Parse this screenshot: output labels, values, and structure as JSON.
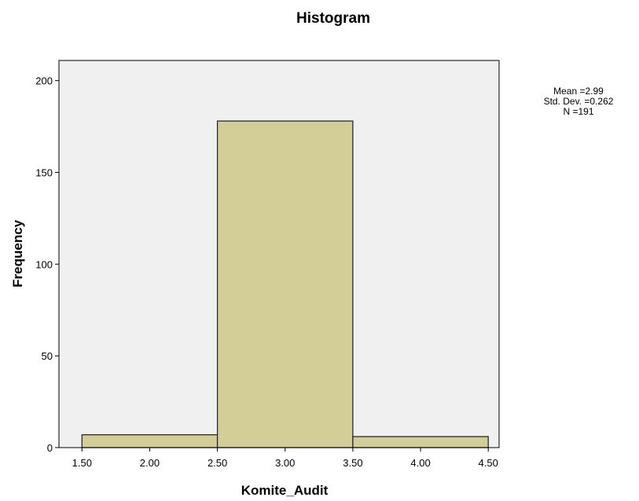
{
  "chart_data": {
    "type": "bar",
    "title": "Histogram",
    "xlabel": "Komite_Audit",
    "ylabel": "Frequency",
    "bins": [
      {
        "from": 1.5,
        "to": 2.5,
        "value": 7
      },
      {
        "from": 2.5,
        "to": 3.5,
        "value": 178
      },
      {
        "from": 3.5,
        "to": 4.5,
        "value": 6
      }
    ],
    "xlim": [
      1.33,
      4.58
    ],
    "ylim": [
      0,
      211
    ],
    "x_ticks": [
      "1.50",
      "2.00",
      "2.50",
      "3.00",
      "3.50",
      "4.00",
      "4.50"
    ],
    "x_tick_values": [
      1.5,
      2.0,
      2.5,
      3.0,
      3.5,
      4.0,
      4.5
    ],
    "y_ticks": [
      "0",
      "50",
      "100",
      "150",
      "200"
    ],
    "y_tick_values": [
      0,
      50,
      100,
      150,
      200
    ],
    "grid": false,
    "stats": {
      "mean_label": "Mean =2.99",
      "sd_label": "Std. Dev. =0.262",
      "n_label": "N =191"
    },
    "colors": {
      "bar_fill": "#d3cd98",
      "bar_stroke": "#2b2b2b",
      "plot_background": "#f0f0f0",
      "axis": "#000000"
    }
  }
}
